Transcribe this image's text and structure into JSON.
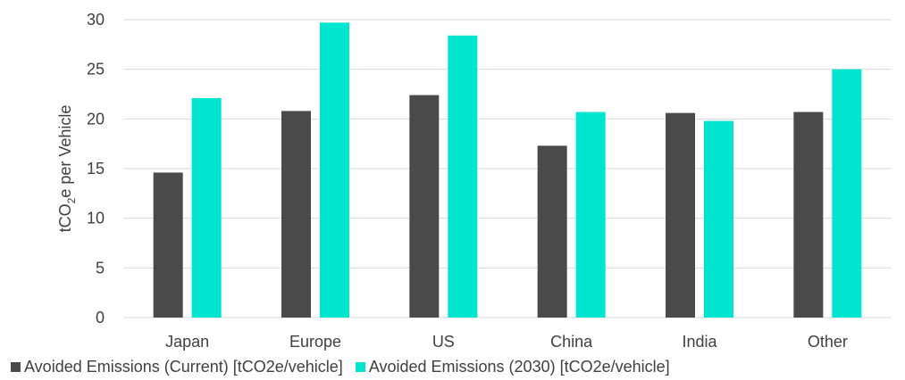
{
  "chart_data": {
    "type": "bar",
    "categories": [
      "Japan",
      "Europe",
      "US",
      "China",
      "India",
      "Other"
    ],
    "series": [
      {
        "name": "Avoided Emissions (Current) [tCO2e/vehicle]",
        "color": "#4a4a4a",
        "values": [
          14.6,
          20.8,
          22.4,
          17.3,
          20.6,
          20.7
        ]
      },
      {
        "name": "Avoided Emissions (2030) [tCO2e/vehicle]",
        "color": "#00e5cf",
        "values": [
          22.1,
          29.7,
          28.4,
          20.7,
          19.8,
          25.0
        ]
      }
    ],
    "ylabel_prefix": "tCO",
    "ylabel_sub": "2",
    "ylabel_suffix": "e per Vehicle",
    "ylim": [
      0,
      30
    ],
    "yticks": [
      "0",
      "5",
      "10",
      "15",
      "20",
      "25",
      "30"
    ],
    "grid": true,
    "legend_position": "bottom"
  }
}
